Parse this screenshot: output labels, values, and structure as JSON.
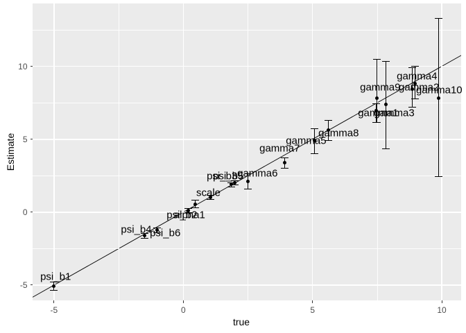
{
  "chart_data": {
    "type": "scatter",
    "title": "",
    "xlabel": "true",
    "ylabel": "Estimate",
    "x_ticks": [
      -5,
      0,
      5,
      10
    ],
    "y_ticks": [
      -5,
      0,
      5,
      10
    ],
    "x_minor_ticks": [
      -2.5,
      2.5,
      7.5
    ],
    "y_minor_ticks": [
      -2.5,
      2.5,
      7.5,
      12.5
    ],
    "xlim": [
      -5.83,
      10.75
    ],
    "ylim": [
      -6.05,
      14.31
    ],
    "grid": true,
    "identity_line": true,
    "panel_bg": "#EBEBEB",
    "grid_color": "#ffffff",
    "point_color": "#000000",
    "tick_text_color": "#4d4d4d",
    "points": [
      {
        "label": "psi_b1",
        "x": -5.0,
        "y": -5.05,
        "ci": [
          -5.36,
          -4.78
        ],
        "lx": -4.94,
        "ly": -4.43
      },
      {
        "label": "psi_b4",
        "x": -1.5,
        "y": -1.59,
        "ci": [
          -1.8,
          -1.42
        ],
        "lx": -1.82,
        "ly": -1.19
      },
      {
        "label": "psi_b6",
        "x": -1.02,
        "y": -1.22,
        "ci": [
          -1.42,
          -1.05
        ],
        "lx": -0.7,
        "ly": -1.43
      },
      {
        "label": "psi_b2",
        "x": 0.2,
        "y": 0.1,
        "ci": [
          -0.05,
          0.3
        ],
        "lx": -0.05,
        "ly": -0.2
      },
      {
        "label": "alpha1",
        "x": 0.45,
        "y": 0.56,
        "ci": [
          0.3,
          0.83
        ],
        "lx": 0.24,
        "ly": -0.2
      },
      {
        "label": "scale",
        "x": 1.04,
        "y": 1.02,
        "ci": [
          0.85,
          1.2
        ],
        "lx": 0.97,
        "ly": 1.33
      },
      {
        "label": "psi_b3",
        "x": 1.86,
        "y": 1.9,
        "ci": [
          1.7,
          2.05
        ],
        "lx": 1.5,
        "ly": 2.47
      },
      {
        "label": "psi_b5",
        "x": 1.99,
        "y": 2.02,
        "ci": [
          1.85,
          2.2
        ],
        "lx": 1.74,
        "ly": 2.47
      },
      {
        "label": "gamma6",
        "x": 2.5,
        "y": 2.1,
        "ci": [
          1.54,
          2.65
        ],
        "lx": 2.87,
        "ly": 2.66
      },
      {
        "label": "gamma7",
        "x": 3.93,
        "y": 3.4,
        "ci": [
          2.97,
          3.76
        ],
        "lx": 3.73,
        "ly": 4.37
      },
      {
        "label": "gamma5",
        "x": 5.08,
        "y": 4.9,
        "ci": [
          4.0,
          5.75
        ],
        "lx": 4.75,
        "ly": 4.9
      },
      {
        "label": "gamma8",
        "x": 5.6,
        "y": 5.64,
        "ci": [
          4.88,
          6.3
        ],
        "lx": 6.01,
        "ly": 5.42
      },
      {
        "label": "gamma9",
        "x": 7.5,
        "y": 7.8,
        "ci": [
          6.15,
          10.5
        ],
        "lx": 7.62,
        "ly": 8.56
      },
      {
        "label": "gamma1",
        "x": 7.45,
        "y": 6.97,
        "ci": [
          6.15,
          7.45
        ],
        "lx": 7.54,
        "ly": 6.8
      },
      {
        "label": "gamma3",
        "x": 7.83,
        "y": 7.41,
        "ci": [
          4.3,
          10.35
        ],
        "lx": 8.16,
        "ly": 6.8
      },
      {
        "label": "gamma2",
        "x": 8.85,
        "y": 8.45,
        "ci": [
          7.2,
          9.95
        ],
        "lx": 9.12,
        "ly": 8.56
      },
      {
        "label": "gamma4",
        "x": 8.96,
        "y": 8.81,
        "ci": [
          7.75,
          10.05
        ],
        "lx": 9.04,
        "ly": 9.32
      },
      {
        "label": "gamma10",
        "x": 9.87,
        "y": 7.84,
        "ci": [
          2.4,
          13.3
        ],
        "lx": 9.9,
        "ly": 8.37
      }
    ]
  }
}
